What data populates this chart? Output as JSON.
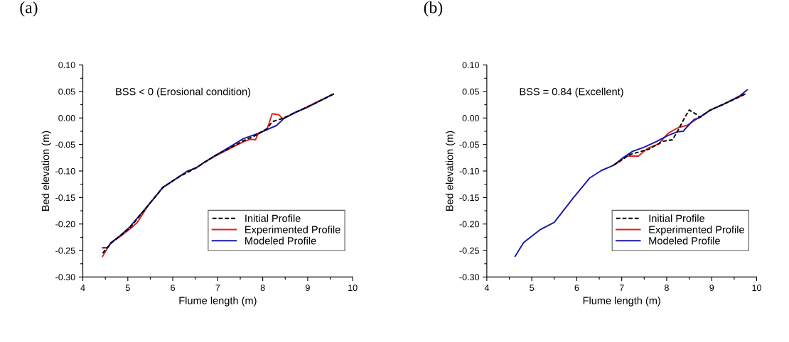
{
  "chart_data": [
    {
      "type": "line",
      "title": "(a)",
      "xlabel": "Flume length (m)",
      "ylabel": "Bed elevation (m)",
      "annotations": [
        "BSS < 0 (Erosional condition)"
      ],
      "xlim": [
        4,
        10
      ],
      "xticks": [
        4,
        5,
        6,
        7,
        8,
        9,
        10
      ],
      "ylim": [
        -0.3,
        0.1
      ],
      "yticks": [
        {
          "value": -0.3,
          "label": "-0.30"
        },
        {
          "value": -0.25,
          "label": "-0.25"
        },
        {
          "value": -0.2,
          "label": "-0.20"
        },
        {
          "value": -0.15,
          "label": "-0.15"
        },
        {
          "value": -0.1,
          "label": "-0.10"
        },
        {
          "value": -0.05,
          "label": "-0.05"
        },
        {
          "value": 0,
          "label": "0.00"
        },
        {
          "value": 0.05,
          "label": "0.05"
        },
        {
          "value": 0.1,
          "label": "0.10"
        }
      ],
      "grid": false,
      "legend": "bottom right",
      "marker": "none",
      "series": [
        {
          "name": "Initial Profile",
          "color": "#000000",
          "line_style": "dashed",
          "x": [
            4.44,
            4.63,
            5.05,
            5.47,
            5.78,
            6.1,
            6.52,
            6.94,
            7.26,
            7.57,
            7.84,
            8.1,
            8.21,
            8.44,
            8.73,
            9.15,
            9.57
          ],
          "values": [
            -0.255,
            -0.236,
            -0.207,
            -0.163,
            -0.131,
            -0.113,
            -0.094,
            -0.071,
            -0.057,
            -0.043,
            -0.033,
            -0.02,
            -0.007,
            -0.001,
            0.011,
            0.027,
            0.045
          ]
        },
        {
          "name": "Experimented Profile",
          "color": "#e0201b",
          "line_style": "solid",
          "x": [
            4.44,
            4.55,
            4.63,
            4.84,
            5.05,
            5.21,
            5.47,
            5.78,
            6.1,
            6.31,
            6.52,
            6.73,
            6.94,
            7.26,
            7.57,
            7.73,
            7.84,
            7.89,
            8.1,
            8.21,
            8.36,
            8.44,
            8.63,
            8.94,
            9.15,
            9.57
          ],
          "values": [
            -0.261,
            -0.245,
            -0.235,
            -0.223,
            -0.209,
            -0.197,
            -0.163,
            -0.131,
            -0.113,
            -0.101,
            -0.094,
            -0.082,
            -0.072,
            -0.058,
            -0.045,
            -0.04,
            -0.041,
            -0.031,
            -0.02,
            0.008,
            0.006,
            -0.001,
            0.006,
            0.019,
            0.028,
            0.045
          ]
        },
        {
          "name": "Modeled Profile",
          "color": "#1a1aa8",
          "line_style": "solid",
          "x": [
            4.44,
            4.55,
            4.63,
            4.84,
            5.05,
            5.15,
            5.47,
            5.78,
            6.1,
            6.31,
            6.52,
            6.73,
            6.94,
            7.26,
            7.57,
            7.84,
            8.1,
            8.31,
            8.47,
            8.73,
            8.94,
            9.15,
            9.57
          ],
          "values": [
            -0.245,
            -0.245,
            -0.235,
            -0.221,
            -0.205,
            -0.195,
            -0.163,
            -0.131,
            -0.113,
            -0.101,
            -0.094,
            -0.082,
            -0.071,
            -0.055,
            -0.039,
            -0.031,
            -0.022,
            -0.014,
            -0.001,
            0.011,
            0.018,
            0.027,
            0.045
          ]
        }
      ]
    },
    {
      "type": "line",
      "title": "(b)",
      "xlabel": "Flume length (m)",
      "ylabel": "Bed elevation (m)",
      "annotations": [
        "BSS = 0.84 (Excellent)"
      ],
      "xlim": [
        4,
        10
      ],
      "xticks": [
        4,
        5,
        6,
        7,
        8,
        9,
        10
      ],
      "ylim": [
        -0.3,
        0.1
      ],
      "yticks": [
        {
          "value": -0.3,
          "label": "-0.30"
        },
        {
          "value": -0.25,
          "label": "-0.25"
        },
        {
          "value": -0.2,
          "label": "-0.20"
        },
        {
          "value": -0.15,
          "label": "-0.15"
        },
        {
          "value": -0.1,
          "label": "-0.10"
        },
        {
          "value": -0.05,
          "label": "-0.05"
        },
        {
          "value": 0,
          "label": "0.00"
        },
        {
          "value": 0.05,
          "label": "0.05"
        },
        {
          "value": 0.1,
          "label": "0.10"
        }
      ],
      "grid": false,
      "legend": "bottom right",
      "marker": "none",
      "series": [
        {
          "name": "Initial Profile",
          "color": "#000000",
          "line_style": "dashed",
          "x": [
            6.82,
            6.97,
            7.18,
            7.6,
            7.92,
            8.13,
            8.24,
            8.39,
            8.5,
            8.66,
            8.74,
            8.97,
            9.29,
            9.74
          ],
          "values": [
            -0.089,
            -0.081,
            -0.069,
            -0.059,
            -0.044,
            -0.041,
            -0.025,
            -0.001,
            0.015,
            0.007,
            0.001,
            0.015,
            0.027,
            0.045
          ]
        },
        {
          "name": "Experimented Profile",
          "color": "#e0201b",
          "line_style": "solid",
          "x": [
            6.82,
            6.97,
            7.08,
            7.37,
            7.58,
            7.82,
            8.03,
            8.26,
            8.45,
            8.76,
            8.97,
            9.29,
            9.74
          ],
          "values": [
            -0.089,
            -0.081,
            -0.072,
            -0.072,
            -0.057,
            -0.049,
            -0.029,
            -0.018,
            -0.014,
            0.003,
            0.015,
            0.027,
            0.045
          ]
        },
        {
          "name": "Modeled Profile",
          "color": "#1a1aa8",
          "line_style": "solid",
          "x": [
            4.63,
            4.82,
            5.18,
            5.5,
            5.92,
            6.29,
            6.55,
            6.82,
            7.03,
            7.24,
            7.5,
            7.76,
            8.03,
            8.24,
            8.37,
            8.45,
            8.61,
            8.71,
            8.97,
            9.29,
            9.61,
            9.79
          ],
          "values": [
            -0.261,
            -0.235,
            -0.211,
            -0.197,
            -0.151,
            -0.113,
            -0.099,
            -0.089,
            -0.075,
            -0.063,
            -0.055,
            -0.045,
            -0.033,
            -0.026,
            -0.025,
            -0.017,
            -0.003,
            0.0,
            0.015,
            0.027,
            0.041,
            0.053
          ]
        }
      ]
    }
  ]
}
